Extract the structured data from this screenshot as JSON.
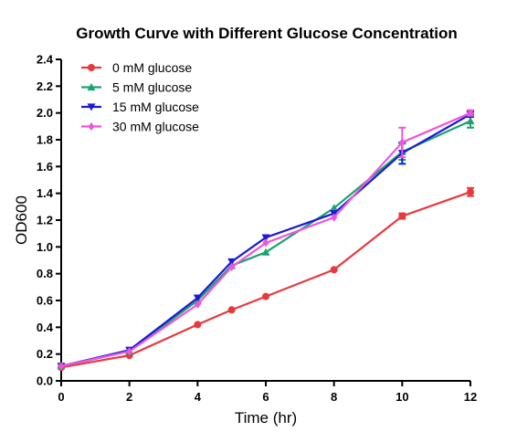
{
  "chart_data": {
    "type": "line",
    "title": "Growth Curve with Different Glucose Concentration",
    "xlabel": "Time (hr)",
    "ylabel": "OD600",
    "xlim": [
      0,
      12
    ],
    "ylim": [
      0.0,
      2.4
    ],
    "x_ticks": [
      "0",
      "2",
      "4",
      "6",
      "8",
      "10",
      "12"
    ],
    "y_ticks": [
      "0.0",
      "0.2",
      "0.4",
      "0.6",
      "0.8",
      "1.0",
      "1.2",
      "1.4",
      "1.6",
      "1.8",
      "2.0",
      "2.2",
      "2.4"
    ],
    "grid": false,
    "legend_position": "top-left",
    "x": [
      0,
      2,
      4,
      5,
      6,
      8,
      10,
      12
    ],
    "series": [
      {
        "name": "0 mM glucose",
        "color": "#e8383d",
        "marker": "circle",
        "values": [
          0.1,
          0.19,
          0.42,
          0.53,
          0.63,
          0.83,
          1.23,
          1.41
        ],
        "errors": [
          0.01,
          0.01,
          0.01,
          0.01,
          0.01,
          0.01,
          0.02,
          0.03
        ]
      },
      {
        "name": "5 mM glucose",
        "color": "#1aa36f",
        "marker": "triangle-up",
        "values": [
          0.11,
          0.22,
          0.6,
          0.86,
          0.96,
          1.29,
          1.71,
          1.94
        ],
        "errors": [
          0.01,
          0.01,
          0.01,
          0.01,
          0.01,
          0.01,
          0.06,
          0.05
        ]
      },
      {
        "name": "15 mM glucose",
        "color": "#1b1bd6",
        "marker": "triangle-down",
        "values": [
          0.11,
          0.23,
          0.62,
          0.89,
          1.07,
          1.25,
          1.7,
          1.99
        ],
        "errors": [
          0.01,
          0.01,
          0.01,
          0.01,
          0.01,
          0.01,
          0.08,
          0.02
        ]
      },
      {
        "name": "30 mM glucose",
        "color": "#ee55dd",
        "marker": "diamond",
        "values": [
          0.11,
          0.22,
          0.57,
          0.85,
          1.03,
          1.22,
          1.78,
          2.0
        ],
        "errors": [
          0.01,
          0.01,
          0.01,
          0.01,
          0.01,
          0.01,
          0.11,
          0.02
        ]
      }
    ]
  }
}
